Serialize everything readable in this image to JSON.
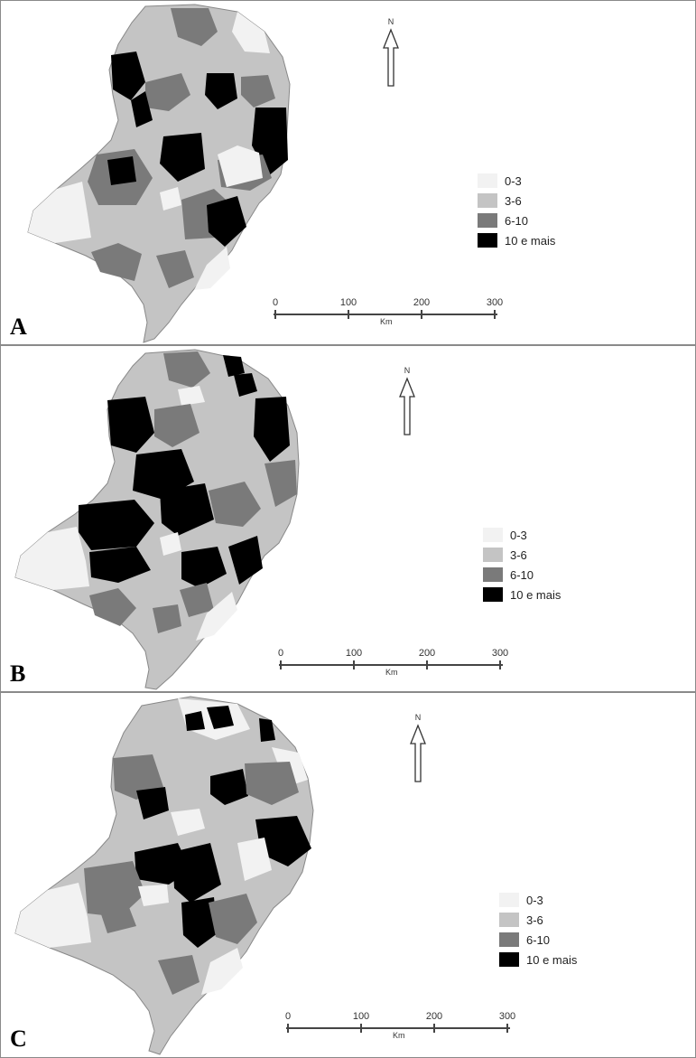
{
  "legend": {
    "classes": [
      {
        "label": "0-3",
        "color": "#f2f2f2"
      },
      {
        "label": "3-6",
        "color": "#c4c4c4"
      },
      {
        "label": "6-10",
        "color": "#7a7a7a"
      },
      {
        "label": "10 e mais",
        "color": "#000000"
      }
    ]
  },
  "north_label": "N",
  "scale": {
    "ticks": [
      "0",
      "100",
      "200",
      "300"
    ],
    "unit": "Km"
  },
  "panels": [
    {
      "letter": "A",
      "shares": {
        "0-3": 0.1,
        "3-6": 0.38,
        "6-10": 0.3,
        "10 e mais": 0.22
      }
    },
    {
      "letter": "B",
      "shares": {
        "0-3": 0.1,
        "3-6": 0.25,
        "6-10": 0.32,
        "10 e mais": 0.33
      }
    },
    {
      "letter": "C",
      "shares": {
        "0-3": 0.15,
        "3-6": 0.3,
        "6-10": 0.33,
        "10 e mais": 0.22
      }
    }
  ]
}
